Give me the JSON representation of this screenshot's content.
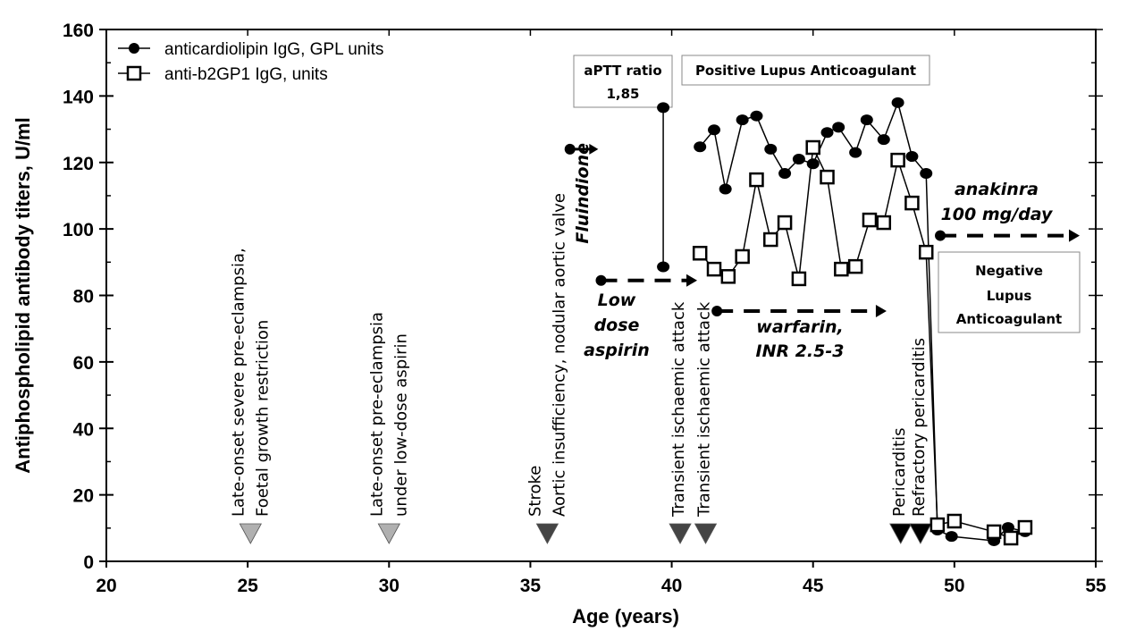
{
  "chart_data": {
    "type": "line",
    "xlabel": "Age (years)",
    "ylabel": "Antiphospholipid antibody titers, U/ml",
    "xlim": [
      20,
      55
    ],
    "ylim": [
      0,
      160
    ],
    "xticks": [
      20,
      25,
      30,
      35,
      40,
      45,
      50,
      55
    ],
    "yticks": [
      0,
      20,
      40,
      60,
      80,
      100,
      120,
      140,
      160
    ],
    "grid": false,
    "legend_placement": "top-left",
    "series": [
      {
        "name": "anticardiolipin IgG, GPL units",
        "marker": "filled-circle",
        "segments": [
          [
            [
              39.7,
              136.5
            ],
            [
              39.7,
              88.6
            ]
          ],
          [
            [
              41.0,
              124.7
            ],
            [
              41.5,
              129.8
            ],
            [
              41.9,
              112
            ],
            [
              42.5,
              132.8
            ],
            [
              43.0,
              134
            ],
            [
              43.5,
              124
            ],
            [
              44.0,
              116.7
            ],
            [
              44.5,
              121
            ],
            [
              45.0,
              119.6
            ],
            [
              45.5,
              129
            ],
            [
              45.9,
              130.6
            ],
            [
              46.5,
              123
            ],
            [
              46.9,
              132.8
            ],
            [
              47.5,
              126.9
            ],
            [
              48.0,
              138
            ],
            [
              48.5,
              121.8
            ],
            [
              49.0,
              116.7
            ],
            [
              49.4,
              9.4
            ],
            [
              49.9,
              7.5
            ],
            [
              51.4,
              6.2
            ],
            [
              51.9,
              10.2
            ],
            [
              52.5,
              8.9
            ]
          ]
        ]
      },
      {
        "name": "anti-b2GP1 IgG, units",
        "marker": "open-square",
        "segments": [
          [
            [
              41.0,
              92.7
            ],
            [
              41.5,
              87.9
            ],
            [
              42.0,
              85.7
            ],
            [
              42.5,
              91.7
            ],
            [
              43.0,
              114.8
            ],
            [
              43.5,
              96.8
            ],
            [
              44.0,
              101.9
            ],
            [
              44.5,
              85
            ],
            [
              45.0,
              124.5
            ],
            [
              45.5,
              115.6
            ],
            [
              46.0,
              87.9
            ],
            [
              46.5,
              88.7
            ],
            [
              47.0,
              102.7
            ],
            [
              47.5,
              101.9
            ],
            [
              48.0,
              120.7
            ],
            [
              48.5,
              107.8
            ],
            [
              49.0,
              93
            ],
            [
              49.4,
              11
            ],
            [
              50.0,
              12.1
            ],
            [
              51.4,
              8.9
            ],
            [
              52.0,
              7
            ],
            [
              52.5,
              10.2
            ]
          ]
        ]
      }
    ],
    "events": [
      {
        "x": 25.1,
        "color": "#b0b0b0",
        "lines": [
          "Late-onset severe pre-eclampsia,",
          "Foetal growth restriction"
        ]
      },
      {
        "x": 30.0,
        "color": "#b0b0b0",
        "lines": [
          "Late-onset pre-eclampsia",
          "under low-dose aspirin"
        ]
      },
      {
        "x": 35.6,
        "color": "#444444",
        "lines": [
          "Stroke",
          "Aortic  insufficiency, nodular aortic valve"
        ]
      },
      {
        "x": 40.3,
        "color": "#444444",
        "lines": [
          "Transient ischaemic attack"
        ]
      },
      {
        "x": 41.2,
        "color": "#444444",
        "lines": [
          "Transient ischaemic attack"
        ]
      },
      {
        "x": 48.1,
        "color": "#000000",
        "lines": [
          "Pericarditis"
        ]
      },
      {
        "x": 48.8,
        "color": "#000000",
        "lines": [
          "Refractory pericarditis"
        ]
      }
    ],
    "treatments": [
      {
        "label_lines": [
          "Fluindione"
        ],
        "start": [
          36.4,
          124
        ],
        "end": 37.4,
        "style": "solid",
        "vertical": true
      },
      {
        "label_lines": [
          "Low",
          "dose",
          "aspirin"
        ],
        "start": [
          37.5,
          84.5
        ],
        "end": 40.9,
        "style": "dashed"
      },
      {
        "label_lines": [
          "warfarin,",
          "INR 2.5-3"
        ],
        "start": [
          41.6,
          75.3
        ],
        "end": 47.6,
        "style": "dashed"
      },
      {
        "label_lines": [
          "anakinra",
          "100 mg/day"
        ],
        "start": [
          49.5,
          98
        ],
        "end": 55,
        "style": "dashed"
      }
    ],
    "boxes": [
      {
        "lines": [
          "aPTT ratio",
          "1,85"
        ]
      },
      {
        "lines": [
          "Positive Lupus Anticoagulant"
        ]
      },
      {
        "lines": [
          "Negative",
          "Lupus",
          "Anticoagulant"
        ]
      }
    ]
  }
}
